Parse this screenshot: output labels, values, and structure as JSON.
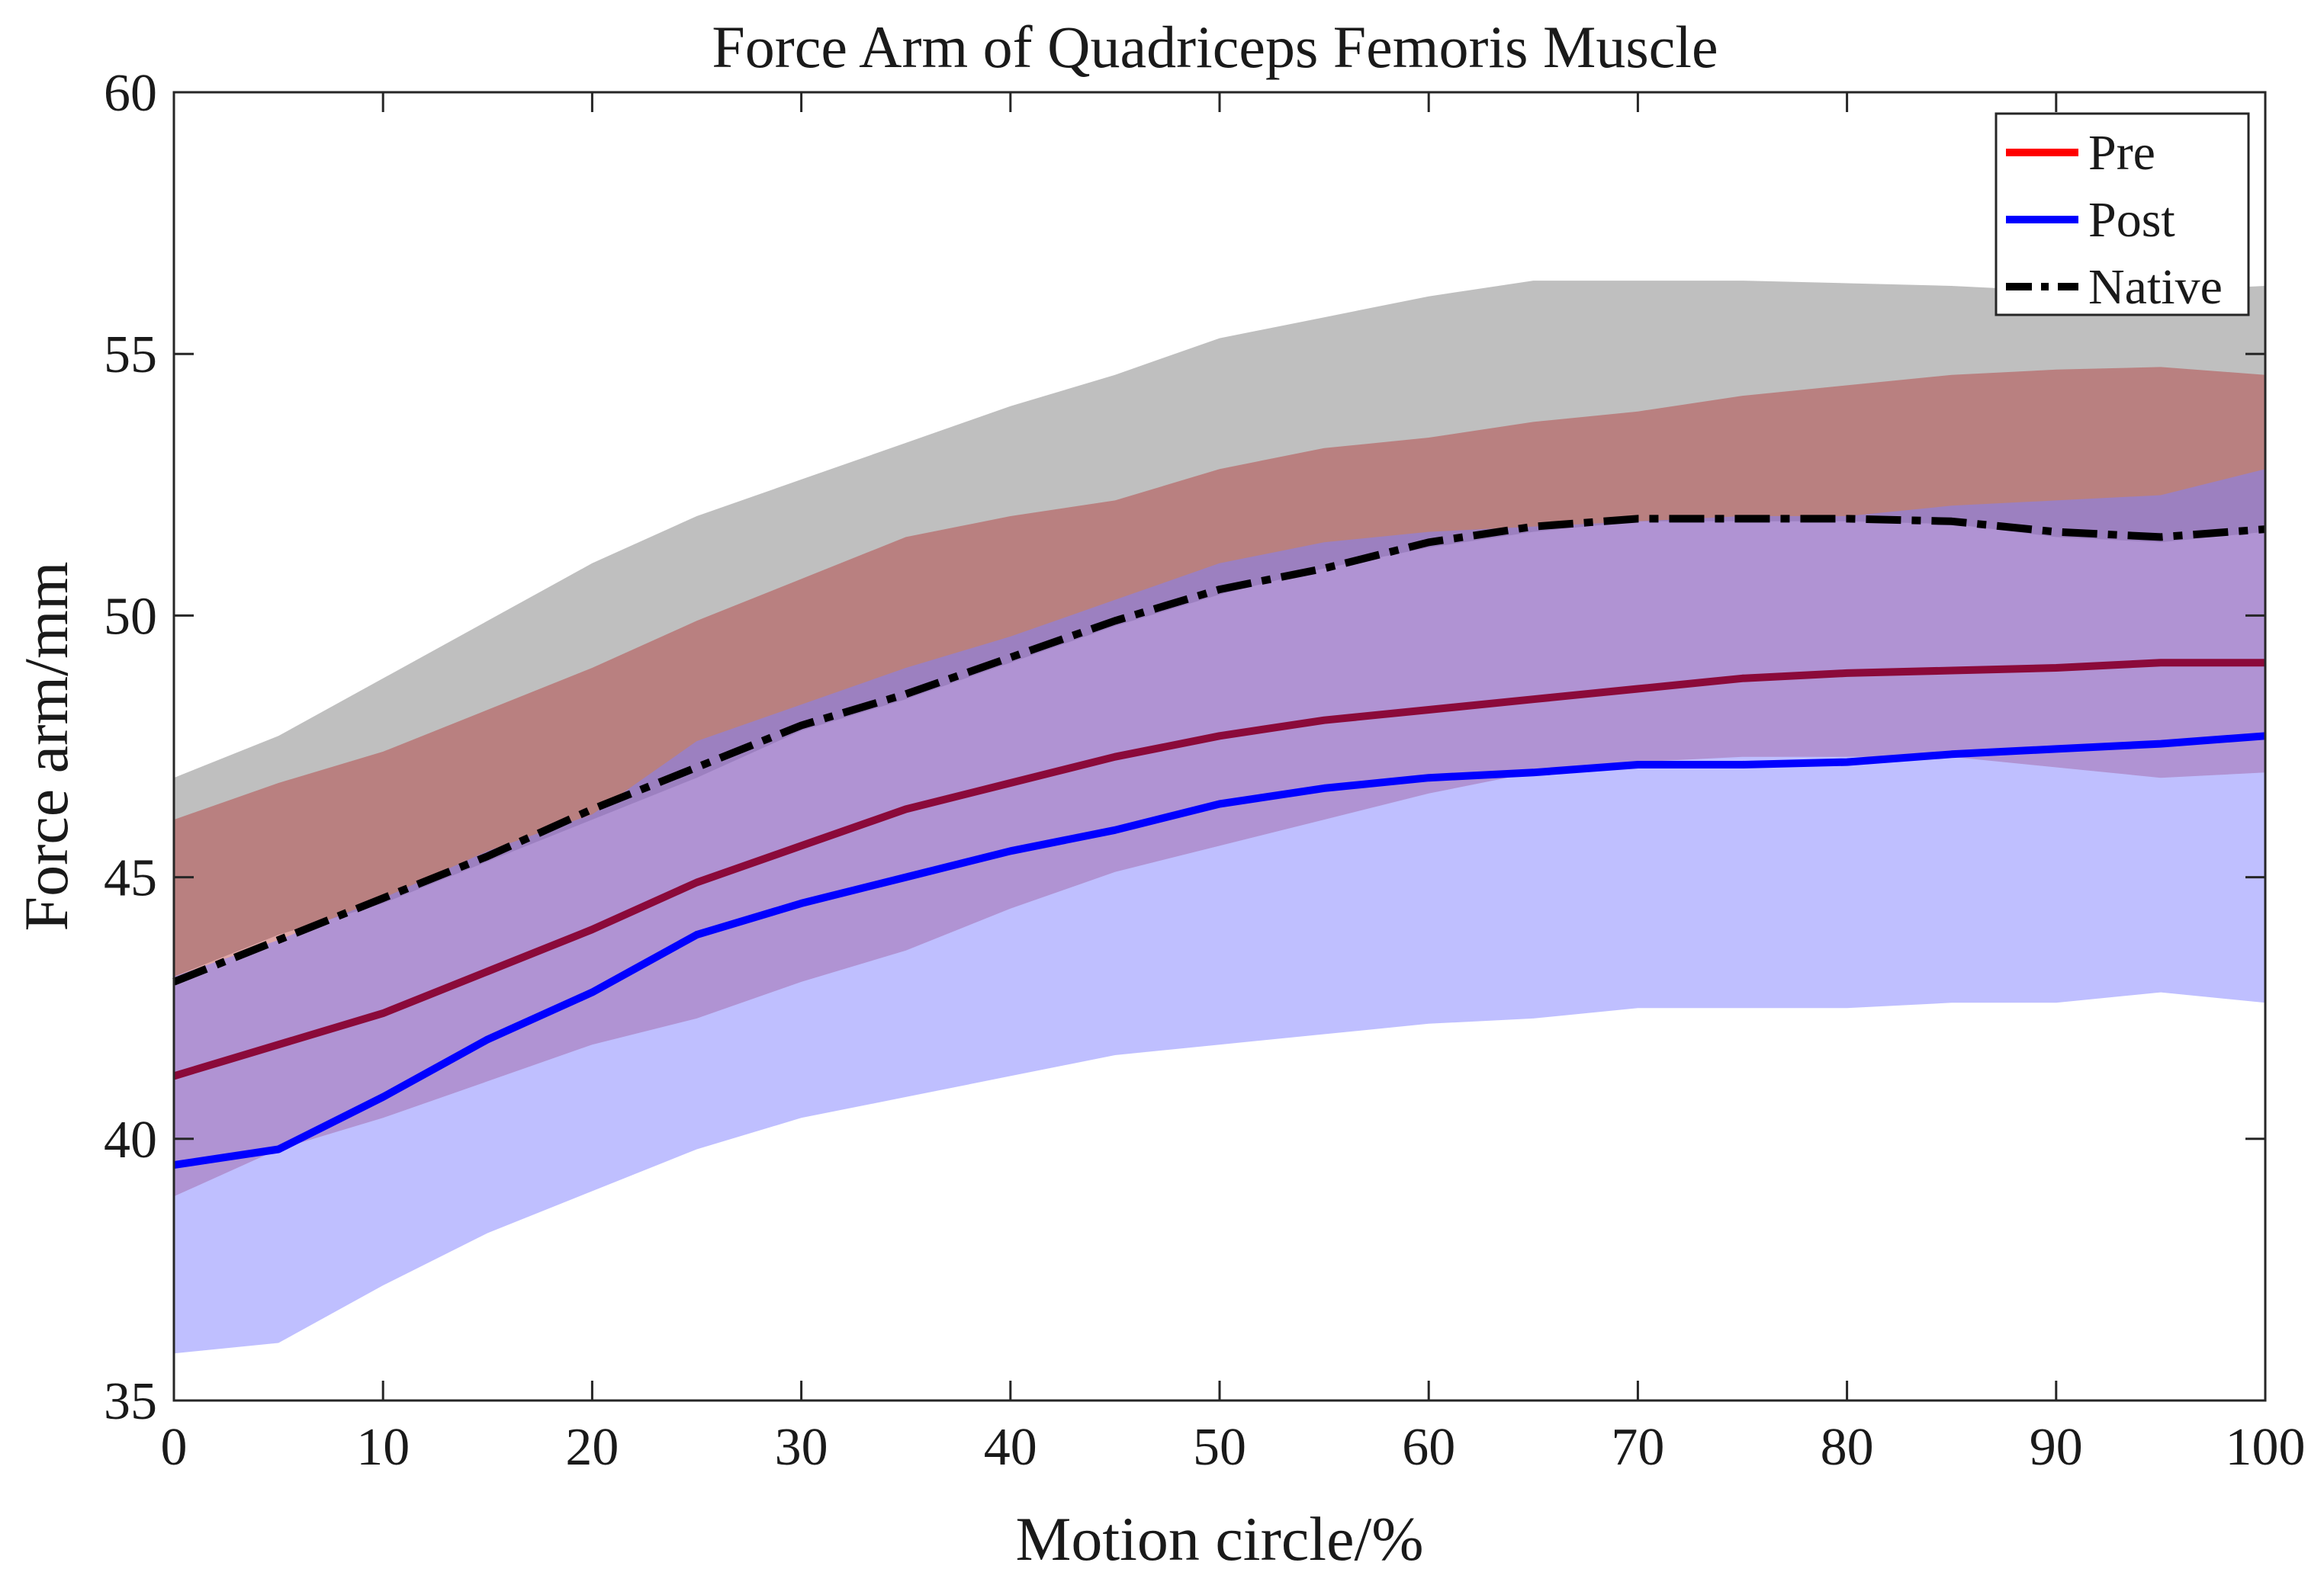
{
  "chart_data": {
    "type": "line",
    "title": "Force Arm of Quadriceps Femoris Muscle",
    "xlabel": "Motion circle/%",
    "ylabel": "Force arm/mm",
    "xlim": [
      0,
      100
    ],
    "ylim": [
      35,
      60
    ],
    "x_ticks": [
      "0",
      "10",
      "20",
      "30",
      "40",
      "50",
      "60",
      "70",
      "80",
      "90",
      "100"
    ],
    "y_ticks": [
      "35",
      "40",
      "45",
      "50",
      "55",
      "60"
    ],
    "legend_position": "top-right",
    "legend": [
      {
        "label": "Pre",
        "color": "#ff0000",
        "style": "solid"
      },
      {
        "label": "Post",
        "color": "#0000ff",
        "style": "solid"
      },
      {
        "label": "Native",
        "color": "#000000",
        "style": "dashdot"
      }
    ],
    "x": [
      0,
      5,
      10,
      15,
      20,
      25,
      30,
      35,
      40,
      45,
      50,
      55,
      60,
      65,
      70,
      75,
      80,
      85,
      90,
      95,
      100
    ],
    "series": [
      {
        "name": "Native",
        "line_color": "#000000",
        "band_color": "#808080",
        "band_opacity": 0.5,
        "mean": [
          43.0,
          43.8,
          44.6,
          45.4,
          46.3,
          47.1,
          47.9,
          48.5,
          49.2,
          49.9,
          50.5,
          50.9,
          51.4,
          51.7,
          51.85,
          51.85,
          51.85,
          51.8,
          51.6,
          51.5,
          51.65
        ],
        "upper": [
          46.9,
          47.7,
          48.8,
          49.9,
          51.0,
          51.9,
          52.6,
          53.3,
          54.0,
          54.6,
          55.3,
          55.7,
          56.1,
          56.4,
          56.4,
          56.4,
          56.35,
          56.3,
          56.2,
          56.2,
          56.3
        ],
        "lower": [
          43.1,
          43.9,
          44.5,
          45.3,
          46.1,
          46.9,
          47.8,
          48.4,
          49.1,
          49.8,
          50.4,
          50.9,
          51.3,
          51.6,
          51.8,
          51.8,
          51.8,
          51.75,
          51.5,
          51.4,
          51.6
        ]
      },
      {
        "name": "Pre",
        "line_color": "#ff0000",
        "band_color": "#b22222",
        "band_opacity": 0.4,
        "mean": [
          41.2,
          41.8,
          42.4,
          43.2,
          44.0,
          44.9,
          45.6,
          46.3,
          46.8,
          47.3,
          47.7,
          48.0,
          48.2,
          48.4,
          48.6,
          48.8,
          48.9,
          48.95,
          49.0,
          49.1,
          49.1
        ],
        "upper": [
          46.1,
          46.8,
          47.4,
          48.2,
          49.0,
          49.9,
          50.7,
          51.5,
          51.9,
          52.2,
          52.8,
          53.2,
          53.4,
          53.7,
          53.9,
          54.2,
          54.4,
          54.6,
          54.7,
          54.75,
          54.6
        ],
        "lower": [
          38.9,
          39.8,
          40.4,
          41.1,
          41.8,
          42.3,
          43.0,
          43.6,
          44.4,
          45.1,
          45.6,
          46.1,
          46.6,
          47.0,
          47.2,
          47.3,
          47.3,
          47.3,
          47.1,
          46.9,
          47.0
        ]
      },
      {
        "name": "Post",
        "line_color": "#0000ff",
        "band_color": "#8080ff",
        "band_opacity": 0.5,
        "mean": [
          39.5,
          39.8,
          40.8,
          41.9,
          42.8,
          43.9,
          44.5,
          45.0,
          45.5,
          45.9,
          46.4,
          46.7,
          46.9,
          47.0,
          47.15,
          47.15,
          47.2,
          47.35,
          47.45,
          47.55,
          47.7
        ],
        "upper": [
          43.1,
          43.8,
          44.6,
          45.5,
          46.2,
          47.6,
          48.3,
          49.0,
          49.6,
          50.3,
          51.0,
          51.4,
          51.6,
          51.7,
          51.8,
          51.9,
          51.9,
          52.1,
          52.2,
          52.3,
          52.8
        ],
        "lower": [
          35.9,
          36.1,
          37.2,
          38.2,
          39.0,
          39.8,
          40.4,
          40.8,
          41.2,
          41.6,
          41.8,
          42.0,
          42.2,
          42.3,
          42.5,
          42.5,
          42.5,
          42.6,
          42.6,
          42.8,
          42.6
        ]
      }
    ]
  }
}
